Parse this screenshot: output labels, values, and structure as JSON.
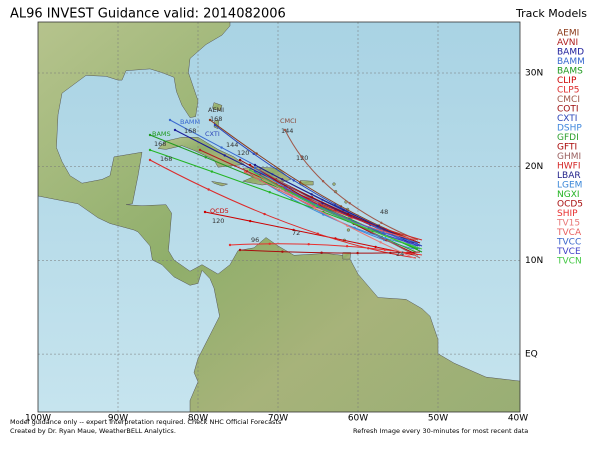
{
  "header": {
    "title": "AL96 INVEST Guidance valid: 2014082006",
    "legend_title": "Track Models"
  },
  "legend": [
    {
      "name": "AEMI",
      "color": "#8b3a1a"
    },
    {
      "name": "AVNI",
      "color": "#b02020"
    },
    {
      "name": "BAMD",
      "color": "#1c1c9a"
    },
    {
      "name": "BAMM",
      "color": "#3a6ad0"
    },
    {
      "name": "BAMS",
      "color": "#1f9a1f"
    },
    {
      "name": "CLIP",
      "color": "#cc0000"
    },
    {
      "name": "CLP5",
      "color": "#dd2a2a"
    },
    {
      "name": "CMCI",
      "color": "#a0584a"
    },
    {
      "name": "COTI",
      "color": "#9a0a0a"
    },
    {
      "name": "CXTI",
      "color": "#2a44b8"
    },
    {
      "name": "DSHP",
      "color": "#3f86dc"
    },
    {
      "name": "GFDI",
      "color": "#2fa02f"
    },
    {
      "name": "GFTI",
      "color": "#aa0a0a"
    },
    {
      "name": "GHMI",
      "color": "#9a6060"
    },
    {
      "name": "HWFI",
      "color": "#d42424"
    },
    {
      "name": "LBAR",
      "color": "#22228a"
    },
    {
      "name": "LGEM",
      "color": "#3a86d8"
    },
    {
      "name": "NGXI",
      "color": "#22b422"
    },
    {
      "name": "OCD5",
      "color": "#a81010"
    },
    {
      "name": "SHIP",
      "color": "#e83030"
    },
    {
      "name": "TV15",
      "color": "#e87878"
    },
    {
      "name": "TVCA",
      "color": "#e86060"
    },
    {
      "name": "TVCC",
      "color": "#3a66cc"
    },
    {
      "name": "TVCE",
      "color": "#4040c8"
    },
    {
      "name": "TVCN",
      "color": "#44c844"
    }
  ],
  "map": {
    "lon_labels": [
      "100W",
      "90W",
      "80W",
      "70W",
      "60W",
      "50W",
      "40W"
    ],
    "lat_labels": [
      "30N",
      "20N",
      "10N",
      "EQ"
    ],
    "annotations": [
      "CMCI",
      "144",
      "120",
      "AEMI",
      "168",
      "BAMM",
      "168",
      "BAMS",
      "168",
      "168",
      "CXTI",
      "144",
      "120",
      "OCD5",
      "120",
      "96",
      "72",
      "48",
      "24"
    ]
  },
  "footer": {
    "disclaimer": "Model guidance only -- expert interpretation required.  Check NHC Official Forecasts",
    "credit": "Created by Dr. Ryan Maue, WeatherBELL Analytics.",
    "refresh": "Refresh Image every 30-minutes for most recent data"
  }
}
